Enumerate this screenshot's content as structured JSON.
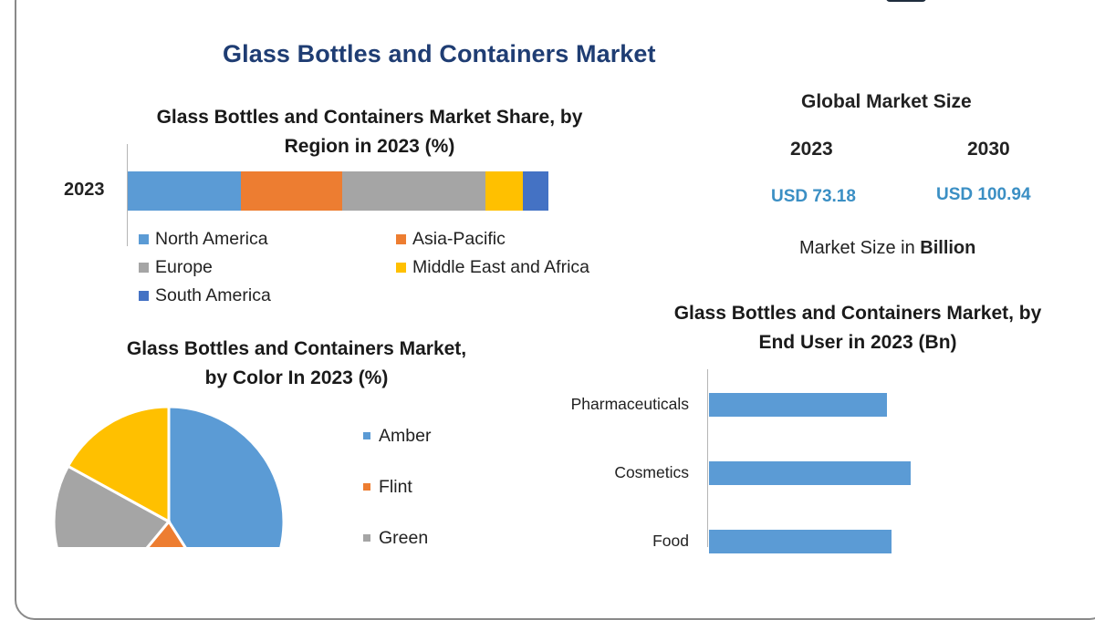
{
  "main_title": "Glass Bottles and Containers Market",
  "colors": {
    "north_america": "#5b9bd5",
    "asia_pacific": "#ed7d31",
    "europe": "#a5a5a5",
    "middle_east_africa": "#ffc000",
    "south_america": "#4472c4"
  },
  "global_market_size": {
    "title": "Global Market Size",
    "year_2023": "2023",
    "year_2030": "2030",
    "value_2023": "USD 73.18",
    "value_2030": "USD 100.94",
    "note_prefix": "Market Size in ",
    "note_unit": "Billion"
  },
  "chart_data": [
    {
      "type": "bar",
      "orientation": "horizontal-stacked",
      "title_line1": "Glass Bottles and Containers Market Share, by",
      "title_line2": "Region in 2023 (%)",
      "categories": [
        "2023"
      ],
      "series": [
        {
          "name": "North America",
          "values": [
            27
          ],
          "color": "#5b9bd5"
        },
        {
          "name": "Asia-Pacific",
          "values": [
            24
          ],
          "color": "#ed7d31"
        },
        {
          "name": "Europe",
          "values": [
            34
          ],
          "color": "#a5a5a5"
        },
        {
          "name": "Middle East and Africa",
          "values": [
            9
          ],
          "color": "#ffc000"
        },
        {
          "name": "South America",
          "values": [
            6
          ],
          "color": "#4472c4"
        }
      ],
      "legend_position": "bottom"
    },
    {
      "type": "pie",
      "title_line1": "Glass Bottles and Containers Market,",
      "title_line2": "by Color In 2023 (%)",
      "slices": [
        {
          "label": "Amber",
          "value": 41,
          "color": "#5b9bd5"
        },
        {
          "label": "Flint",
          "value": 20,
          "color": "#ed7d31"
        },
        {
          "label": "Green",
          "value": 22,
          "color": "#a5a5a5"
        },
        {
          "label": "",
          "value": 17,
          "color": "#ffc000"
        }
      ],
      "legend_visible": [
        "Amber",
        "Flint",
        "Green"
      ],
      "legend_position": "right"
    },
    {
      "type": "bar",
      "orientation": "horizontal",
      "title_line1": "Glass Bottles and Containers Market, by",
      "title_line2": "End User in 2023 (Bn)",
      "categories": [
        "Pharmaceuticals",
        "Cosmetics",
        "Food"
      ],
      "values": [
        18.5,
        21,
        19
      ],
      "xlim": [
        0,
        38
      ],
      "color": "#5b9bd5"
    }
  ]
}
